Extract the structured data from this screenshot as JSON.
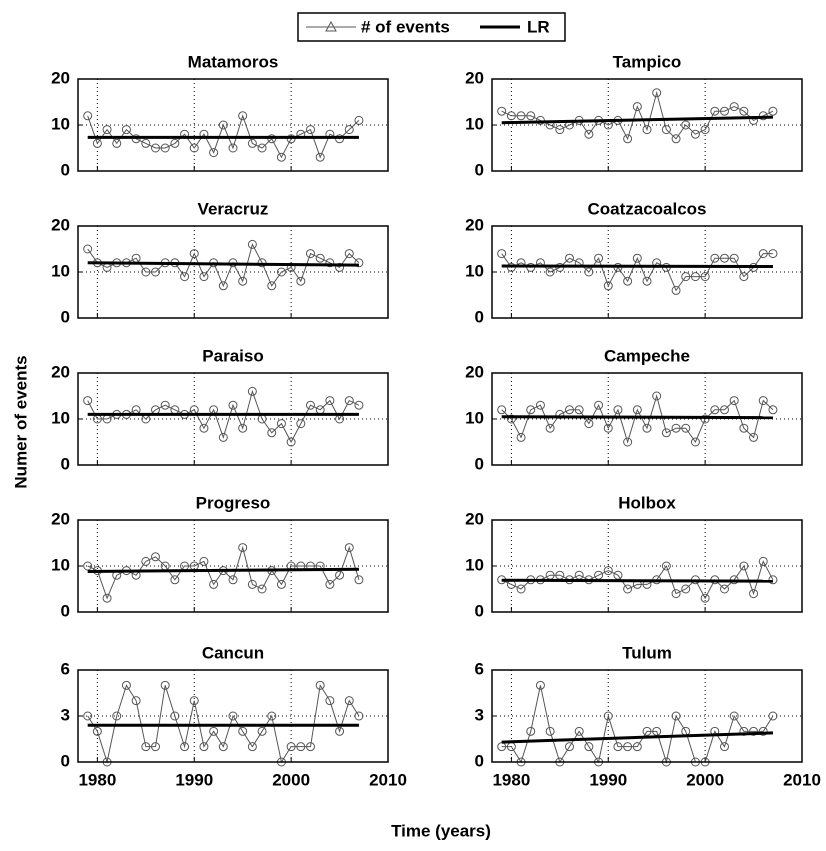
{
  "chart_data": {
    "type": "line",
    "xlabel": "Time (years)",
    "ylabel": "Numer of events",
    "series_names": [
      "# of events",
      "LR"
    ],
    "x": [
      1979,
      1980,
      1981,
      1982,
      1983,
      1984,
      1985,
      1986,
      1987,
      1988,
      1989,
      1990,
      1991,
      1992,
      1993,
      1994,
      1995,
      1996,
      1997,
      1998,
      1999,
      2000,
      2001,
      2002,
      2003,
      2004,
      2005,
      2006,
      2007
    ],
    "lr_x": [
      1979,
      2007
    ],
    "xlim": [
      1978,
      2010
    ],
    "xticks": [
      1980,
      1990,
      2000,
      2010
    ],
    "grid": true,
    "panels": [
      {
        "title": "Matamoros",
        "ylim": [
          0,
          20
        ],
        "yticks": [
          0,
          10,
          20
        ],
        "values": [
          12,
          6,
          9,
          6,
          9,
          7,
          6,
          5,
          5,
          6,
          8,
          5,
          8,
          4,
          10,
          5,
          12,
          6,
          5,
          7,
          3,
          7,
          8,
          9,
          3,
          8,
          7,
          9,
          11
        ],
        "lr": [
          7.3,
          7.3
        ]
      },
      {
        "title": "Tampico",
        "ylim": [
          0,
          20
        ],
        "yticks": [
          0,
          10,
          20
        ],
        "values": [
          13,
          12,
          12,
          12,
          11,
          10,
          9,
          10,
          11,
          8,
          11,
          10,
          11,
          7,
          14,
          9,
          17,
          9,
          7,
          10,
          8,
          9,
          13,
          13,
          14,
          13,
          11,
          12,
          13
        ],
        "lr": [
          10.5,
          11.7
        ]
      },
      {
        "title": "Veracruz",
        "ylim": [
          0,
          20
        ],
        "yticks": [
          0,
          10,
          20
        ],
        "values": [
          15,
          12,
          11,
          12,
          12,
          13,
          10,
          10,
          12,
          12,
          9,
          14,
          9,
          12,
          7,
          12,
          8,
          16,
          12,
          7,
          10,
          11,
          8,
          14,
          13,
          12,
          11,
          14,
          12
        ],
        "lr": [
          12,
          11.5
        ]
      },
      {
        "title": "Coatzacoalcos",
        "ylim": [
          0,
          20
        ],
        "yticks": [
          0,
          10,
          20
        ],
        "values": [
          14,
          11,
          12,
          11,
          12,
          10,
          11,
          13,
          12,
          10,
          13,
          7,
          11,
          8,
          13,
          8,
          12,
          11,
          6,
          9,
          9,
          9,
          13,
          13,
          13,
          9,
          11,
          14,
          14
        ],
        "lr": [
          11.3,
          11.2
        ]
      },
      {
        "title": "Paraiso",
        "ylim": [
          0,
          20
        ],
        "yticks": [
          0,
          10,
          20
        ],
        "values": [
          14,
          10,
          10,
          11,
          11,
          12,
          10,
          12,
          13,
          12,
          11,
          12,
          8,
          12,
          6,
          13,
          8,
          16,
          10,
          7,
          9,
          5,
          9,
          13,
          12,
          14,
          10,
          14,
          13
        ],
        "lr": [
          11,
          11
        ]
      },
      {
        "title": "Campeche",
        "ylim": [
          0,
          20
        ],
        "yticks": [
          0,
          10,
          20
        ],
        "values": [
          12,
          10,
          6,
          12,
          13,
          8,
          11,
          12,
          12,
          9,
          13,
          8,
          12,
          5,
          12,
          8,
          15,
          7,
          8,
          8,
          5,
          10,
          12,
          12,
          14,
          8,
          6,
          14,
          12
        ],
        "lr": [
          10.5,
          10.3
        ]
      },
      {
        "title": "Progreso",
        "ylim": [
          0,
          20
        ],
        "yticks": [
          0,
          10,
          20
        ],
        "values": [
          10,
          9,
          3,
          8,
          9,
          8,
          11,
          12,
          10,
          7,
          10,
          10,
          11,
          6,
          9,
          7,
          14,
          6,
          5,
          9,
          6,
          10,
          10,
          10,
          10,
          6,
          8,
          14,
          7
        ],
        "lr": [
          8.8,
          9.3
        ]
      },
      {
        "title": "Holbox",
        "ylim": [
          0,
          20
        ],
        "yticks": [
          0,
          10,
          20
        ],
        "values": [
          7,
          6,
          5,
          7,
          7,
          8,
          8,
          7,
          8,
          7,
          8,
          9,
          8,
          5,
          6,
          6,
          7,
          10,
          4,
          5,
          7,
          3,
          7,
          5,
          7,
          10,
          4,
          11,
          7
        ],
        "lr": [
          6.9,
          6.7
        ]
      },
      {
        "title": "Cancun",
        "ylim": [
          0,
          6
        ],
        "yticks": [
          0,
          3,
          6
        ],
        "values": [
          3,
          2,
          0,
          3,
          5,
          4,
          1,
          1,
          5,
          3,
          1,
          4,
          1,
          2,
          1,
          3,
          2,
          1,
          2,
          3,
          0,
          1,
          1,
          1,
          5,
          4,
          2,
          4,
          3
        ],
        "lr": [
          2.4,
          2.4
        ]
      },
      {
        "title": "Tulum",
        "ylim": [
          0,
          6
        ],
        "yticks": [
          0,
          3,
          6
        ],
        "values": [
          1,
          1,
          0,
          2,
          5,
          2,
          0,
          1,
          2,
          1,
          0,
          3,
          1,
          1,
          1,
          2,
          2,
          0,
          3,
          2,
          0,
          0,
          2,
          1,
          3,
          2,
          2,
          2,
          3
        ],
        "lr": [
          1.3,
          1.9
        ]
      }
    ]
  }
}
